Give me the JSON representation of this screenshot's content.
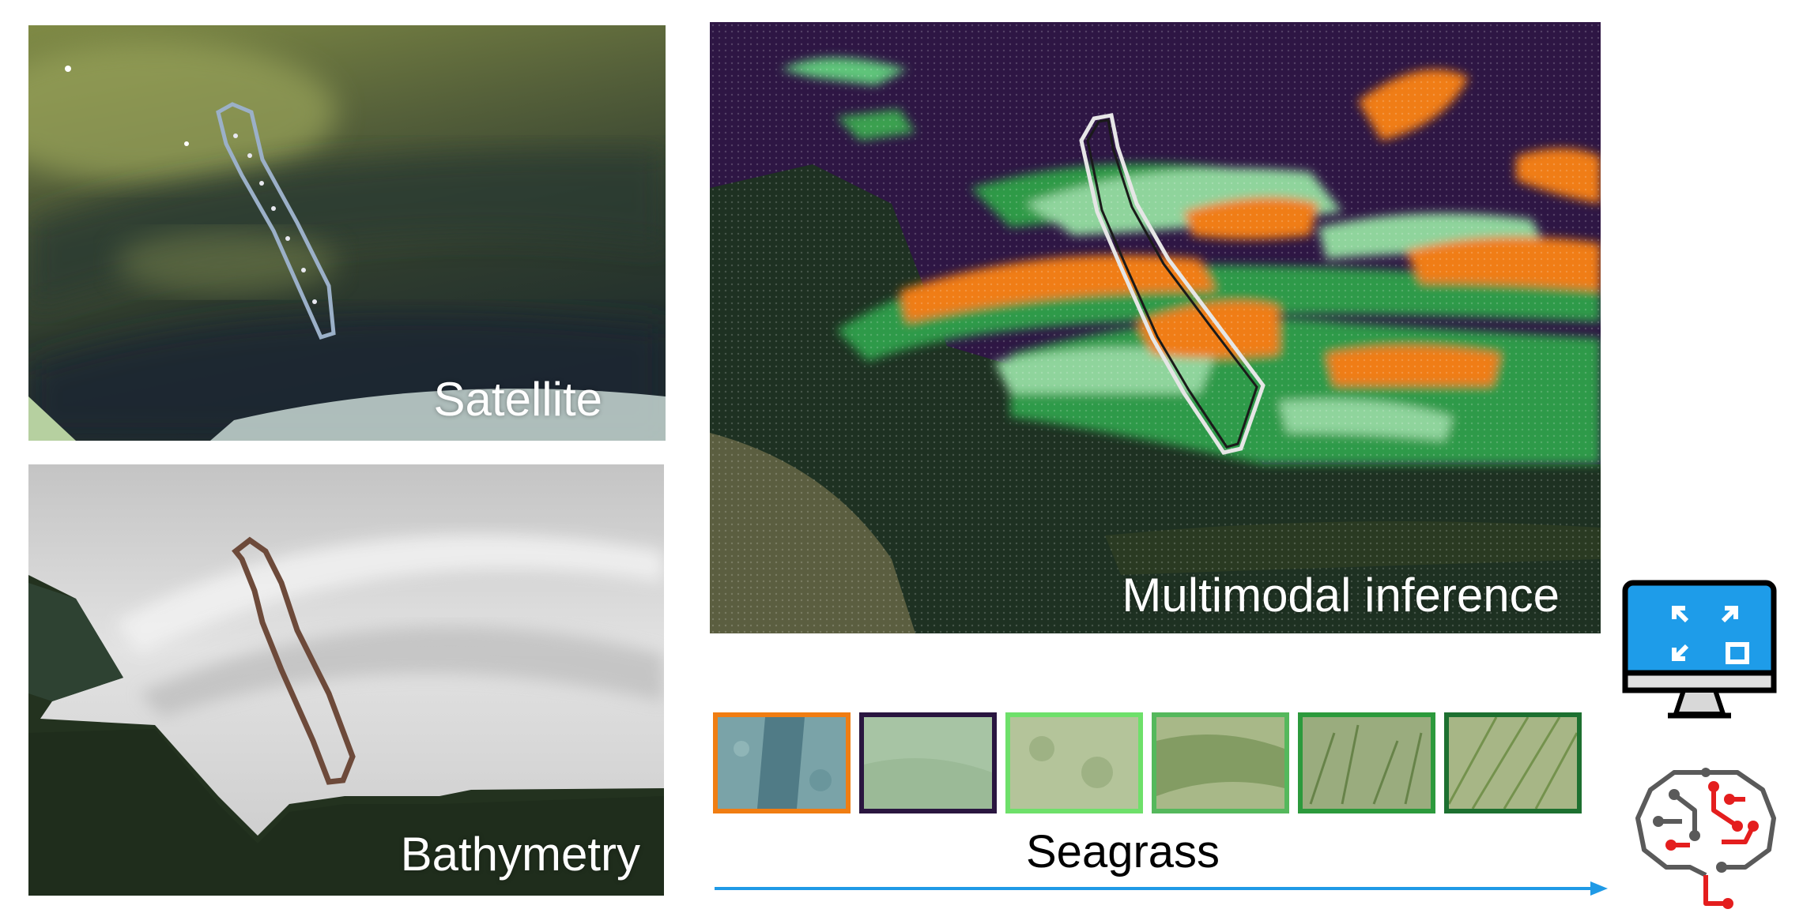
{
  "panels": {
    "satellite": {
      "caption": "Satellite"
    },
    "bathymetry": {
      "caption": "Bathymetry"
    },
    "inference": {
      "caption": "Multimodal inference"
    }
  },
  "seagrass": {
    "label": "Seagrass",
    "classes": [
      {
        "border_color": "#f07d12"
      },
      {
        "border_color": "#2a1640"
      },
      {
        "border_color": "#6ee06a"
      },
      {
        "border_color": "#55b85c"
      },
      {
        "border_color": "#2c9a3c"
      },
      {
        "border_color": "#1d7030"
      }
    ]
  },
  "colors": {
    "arrow": "#1f9ae6",
    "inference_background": "#2e1644",
    "seagrass_orange": "#f07d12",
    "seagrass_light": "#8ed39a",
    "seagrass_dark": "#2e9a48",
    "monitor_screen": "#1e9ce9",
    "brain_red": "#e41e1e",
    "brain_gray": "#5a5a5a"
  },
  "icons": {
    "monitor": "expand-monitor-icon",
    "brain": "brain-circuit-icon"
  }
}
